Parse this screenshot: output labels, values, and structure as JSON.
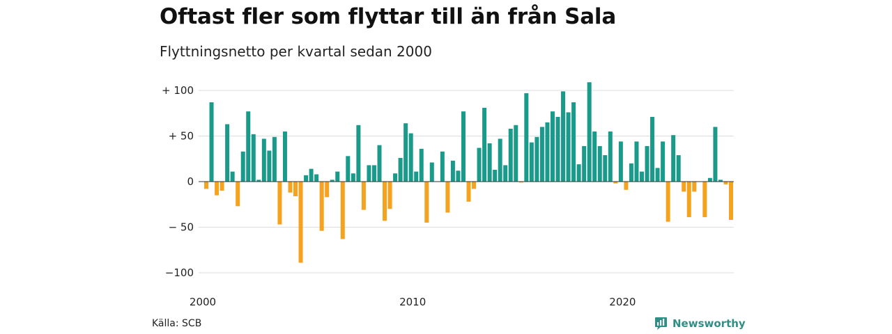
{
  "title": "Oftast fler som flyttar till än från Sala",
  "subtitle": "Flyttningsnetto per kvartal sedan 2000",
  "source": "Källa: SCB",
  "brand": "Newsworthy",
  "colors": {
    "positive": "#1a9a8a",
    "negative": "#f5a21e",
    "grid": "#dddddd",
    "brand": "#2f8f86"
  },
  "chart_data": {
    "type": "bar",
    "title": "Oftast fler som flyttar till än från Sala",
    "subtitle": "Flyttningsnetto per kvartal sedan 2000",
    "ylim": [
      -110,
      110
    ],
    "y_ticks": [
      {
        "value": 100,
        "label": "+ 100"
      },
      {
        "value": 50,
        "label": "+  50"
      },
      {
        "value": 0,
        "label": "0"
      },
      {
        "value": -50,
        "label": "− 50"
      },
      {
        "value": -100,
        "label": "−100"
      }
    ],
    "x_ticks": [
      {
        "index": 0,
        "label": "2000"
      },
      {
        "index": 40,
        "label": "2010"
      },
      {
        "index": 80,
        "label": "2020"
      }
    ],
    "grid": true,
    "first_quarter": "2000 Q1",
    "values": [
      -8,
      87,
      -15,
      -10,
      63,
      11,
      -27,
      33,
      77,
      52,
      2,
      47,
      34,
      49,
      -47,
      55,
      -12,
      -16,
      -89,
      7,
      14,
      8,
      -54,
      -17,
      2,
      11,
      -63,
      28,
      9,
      62,
      -31,
      18,
      18,
      40,
      -43,
      -30,
      9,
      26,
      64,
      53,
      11,
      36,
      -45,
      21,
      0,
      33,
      -34,
      23,
      12,
      77,
      -22,
      -8,
      37,
      81,
      42,
      13,
      47,
      18,
      58,
      62,
      -1,
      97,
      43,
      49,
      60,
      65,
      77,
      71,
      99,
      76,
      87,
      19,
      39,
      109,
      55,
      39,
      29,
      55,
      -2,
      44,
      -9,
      20,
      44,
      11,
      39,
      71,
      15,
      44,
      -44,
      51,
      29,
      -11,
      -39,
      -11,
      0,
      -39,
      4,
      60,
      2,
      -3,
      -42
    ]
  }
}
